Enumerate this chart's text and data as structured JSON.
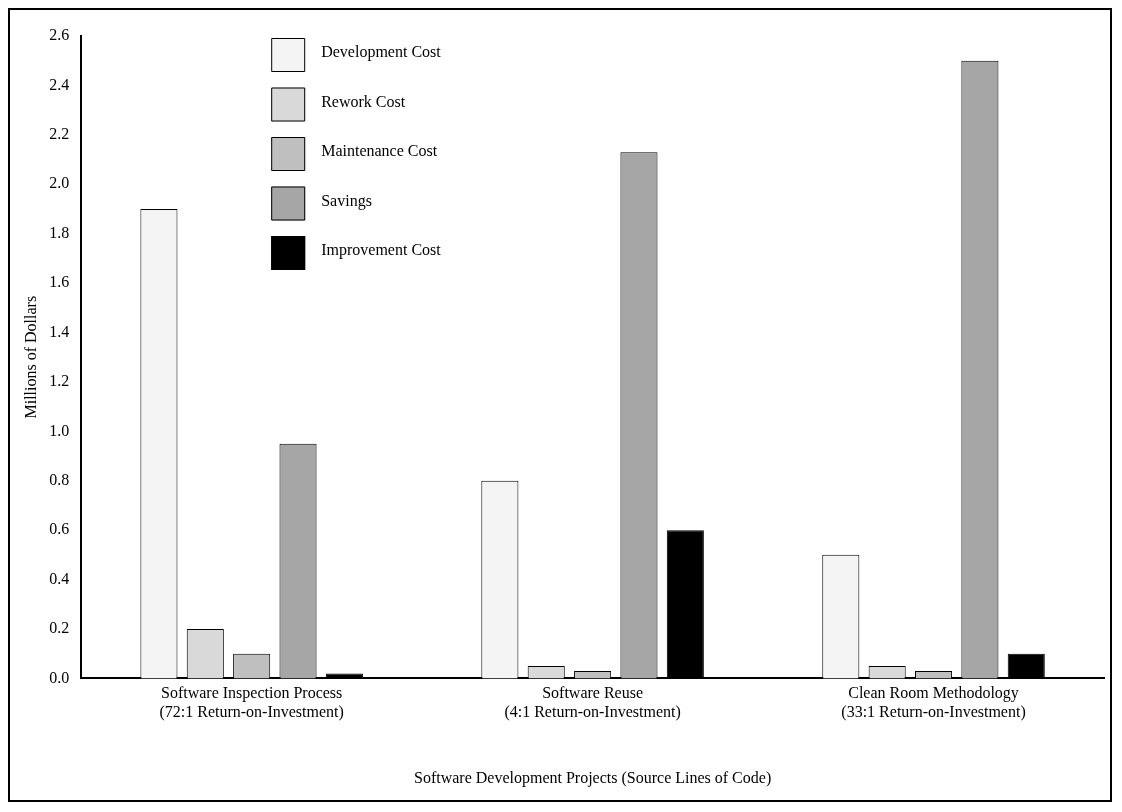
{
  "chart_data": {
    "type": "bar",
    "xlabel": "Software Development Projects (Source Lines of Code)",
    "ylabel": "Millions of Dollars",
    "categories": [
      "Software Inspection Process\n(72:1 Return-on-Investment)",
      "Software Reuse\n(4:1 Return-on-Investment)",
      "Clean Room Methodology\n(33:1 Return-on-Investment)"
    ],
    "series": [
      {
        "name": "Development Cost",
        "color": "#f4f4f4",
        "values": [
          1.9,
          0.8,
          0.5
        ]
      },
      {
        "name": "Rework Cost",
        "color": "#d9d9d9",
        "values": [
          0.2,
          0.05,
          0.05
        ]
      },
      {
        "name": "Maintenance Cost",
        "color": "#bfbfbf",
        "values": [
          0.1,
          0.03,
          0.03
        ]
      },
      {
        "name": "Savings",
        "color": "#a6a6a6",
        "values": [
          0.95,
          2.13,
          2.5
        ]
      },
      {
        "name": "Improvement Cost",
        "color": "#000000",
        "values": [
          0.02,
          0.6,
          0.1
        ]
      }
    ],
    "ylim": [
      0,
      2.6
    ],
    "yticks": [
      {
        "value": 0,
        "label": "0.0"
      },
      {
        "value": 0.2,
        "label": "0.2"
      },
      {
        "value": 0.4,
        "label": "0.4"
      },
      {
        "value": 0.6,
        "label": "0.6"
      },
      {
        "value": 0.8,
        "label": "0.8"
      },
      {
        "value": 1,
        "label": "1.0"
      },
      {
        "value": 1.2,
        "label": "1.2"
      },
      {
        "value": 1.4,
        "label": "1.4"
      },
      {
        "value": 1.6,
        "label": "1.6"
      },
      {
        "value": 1.8,
        "label": "1.8"
      },
      {
        "value": 2,
        "label": "2.0"
      },
      {
        "value": 2.2,
        "label": "2.2"
      },
      {
        "value": 2.4,
        "label": "2.4"
      },
      {
        "value": 2.6,
        "label": "2.6"
      }
    ],
    "grid": false,
    "legend": "top left"
  }
}
